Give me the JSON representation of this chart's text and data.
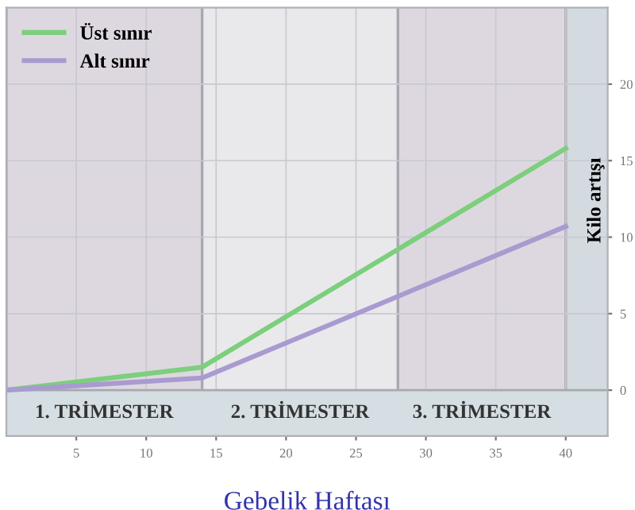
{
  "chart_data": {
    "type": "line",
    "xlabel": "Gebelik Haftası",
    "ylabel": "Kilo artışı",
    "xlim": [
      0,
      43
    ],
    "ylim": [
      -3,
      25
    ],
    "xticks": [
      5,
      10,
      15,
      20,
      25,
      30,
      35,
      40
    ],
    "yticks": [
      0,
      5,
      10,
      15,
      20
    ],
    "grid": true,
    "legend": "top left",
    "marker": "none",
    "line_style": "solid",
    "series": [
      {
        "name": "Üst sınır",
        "color": "#7ccf7c",
        "x": [
          0,
          14,
          40
        ],
        "values": [
          0,
          1.5,
          15.8
        ]
      },
      {
        "name": "Alt sınır",
        "color": "#a99ad0",
        "x": [
          0,
          14,
          40
        ],
        "values": [
          0,
          0.8,
          10.7
        ]
      }
    ],
    "bands": [
      {
        "axis": "x",
        "from": 0,
        "to": 14,
        "label": "1. TRİMESTER",
        "color": "#ddd8e0"
      },
      {
        "axis": "x",
        "from": 14,
        "to": 28,
        "label": "2. TRİMESTER",
        "color": "#e9e9ec"
      },
      {
        "axis": "x",
        "from": 28,
        "to": 40,
        "label": "3. TRİMESTER",
        "color": "#ddd8e0"
      },
      {
        "axis": "x",
        "from": 40,
        "to": 43,
        "label": null,
        "color": "#d3dae0"
      },
      {
        "axis": "y",
        "from": -3,
        "to": 0,
        "label": null,
        "color": "#d5dee2"
      }
    ]
  }
}
